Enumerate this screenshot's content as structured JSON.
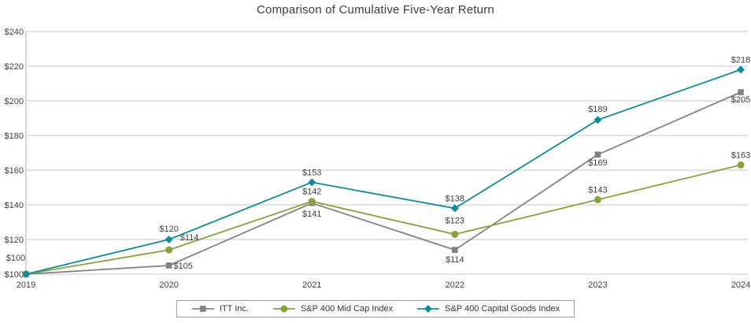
{
  "title": "Comparison of Cumulative Five-Year Return",
  "chart_data": {
    "type": "line",
    "title": "Comparison of Cumulative Five-Year Return",
    "categories": [
      "2019",
      "2020",
      "2021",
      "2022",
      "2023",
      "2024"
    ],
    "series": [
      {
        "name": "ITT Inc.",
        "marker": "square",
        "color": "#808285",
        "values": [
          100,
          105,
          141,
          114,
          169,
          205
        ]
      },
      {
        "name": "S&P 400 Mid Cap Index",
        "marker": "circle",
        "color": "#84a33d",
        "values": [
          100,
          114,
          142,
          123,
          143,
          163
        ]
      },
      {
        "name": "S&P 400 Capital Goods Index",
        "marker": "diamond",
        "color": "#0f8b99",
        "values": [
          100,
          120,
          153,
          138,
          189,
          218
        ]
      }
    ],
    "ylim": [
      100,
      240
    ],
    "ytick_step": 20,
    "currency": "$",
    "grid": true,
    "grid_color": "#c6c7c8",
    "axis_color": "#b0b1b2",
    "label_color": "#3d3d3d",
    "legend_position": "bottom"
  }
}
